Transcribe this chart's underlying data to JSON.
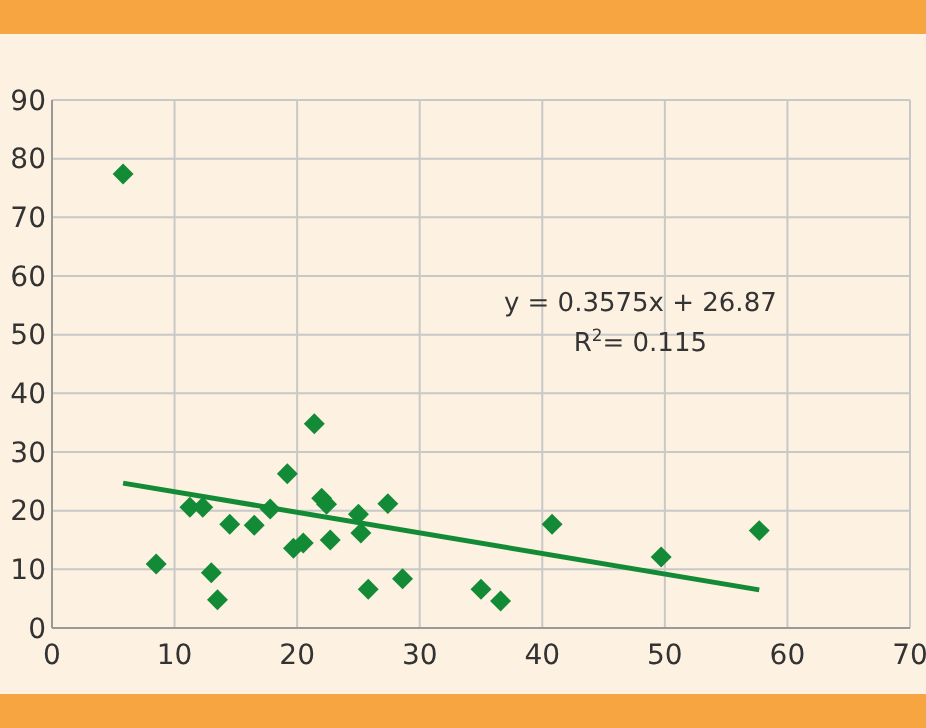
{
  "chart_data": {
    "type": "scatter",
    "marker": "diamond",
    "grid": true,
    "xlim": [
      0,
      70
    ],
    "xticks": [
      0,
      10,
      20,
      30,
      40,
      50,
      60,
      70
    ],
    "ylim": [
      0,
      90
    ],
    "yticks": [
      0,
      10,
      20,
      30,
      40,
      50,
      60,
      70,
      80,
      90
    ],
    "series": [
      {
        "type": "scatter",
        "color": "#138a36",
        "x": [
          5.8,
          8.5,
          11.25,
          12.3,
          13.0,
          13.5,
          14.5,
          16.5,
          17.8,
          19.2,
          19.7,
          20.5,
          21.4,
          22.0,
          22.4,
          22.7,
          25.0,
          25.2,
          25.8,
          27.4,
          28.6,
          35.0,
          36.6,
          40.8,
          49.7,
          57.7
        ],
        "values": [
          77.4,
          10.9,
          20.6,
          20.6,
          9.4,
          4.8,
          17.7,
          17.5,
          20.3,
          26.3,
          13.6,
          14.5,
          34.8,
          22.1,
          21.1,
          15.0,
          19.4,
          16.2,
          6.6,
          21.2,
          8.4,
          6.6,
          4.6,
          17.7,
          12.1,
          16.6
        ]
      },
      {
        "type": "line",
        "color": "#138a36",
        "marker": "none",
        "x": [
          5.8,
          57.7
        ],
        "values": [
          24.7,
          6.5
        ]
      }
    ],
    "annotations": [
      "y = 0.3575x + 26.87",
      "R$^{2}$= 0.115"
    ]
  }
}
